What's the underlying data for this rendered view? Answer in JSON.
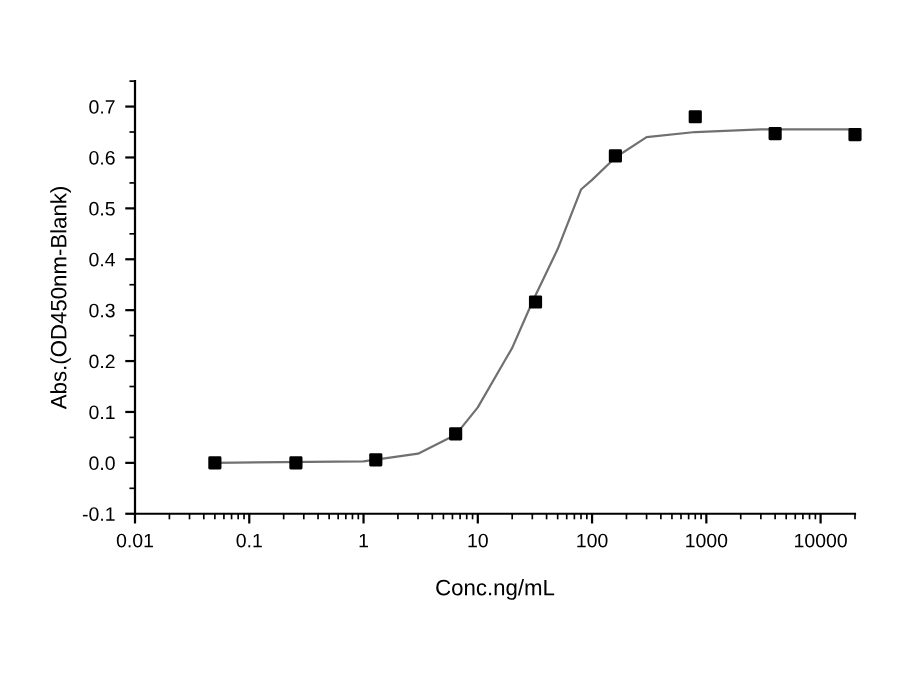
{
  "chart_data": {
    "type": "scatter",
    "xlabel": "Conc.ng/mL",
    "ylabel": "Abs.(OD450nm-Blank)",
    "log": "x",
    "xlim": [
      0.01,
      20000
    ],
    "xticks": [
      0.01,
      0.1,
      1,
      10,
      100,
      1000,
      10000
    ],
    "ylim": [
      -0.1,
      0.75
    ],
    "yticks": [
      -0.1,
      {
        "value": 0,
        "label": "0.0"
      },
      0.1,
      0.2,
      0.3,
      0.4,
      0.5,
      0.6,
      0.7
    ],
    "grid": false,
    "legend": false,
    "marker": "square",
    "series": [
      {
        "color": "#000000",
        "x": [
          0.05,
          0.256,
          1.28,
          6.4,
          32,
          160,
          800,
          4000,
          20000
        ],
        "values": [
          0,
          0,
          0.006,
          0.057,
          0.316,
          0.603,
          0.68,
          0.647,
          0.645
        ]
      },
      {
        "type": "line",
        "color": "#707070",
        "marker": "none",
        "x": [
          0.05,
          1,
          3,
          6.4,
          10,
          20,
          30,
          50,
          80,
          100,
          160,
          300,
          800,
          3000,
          20000
        ],
        "values": [
          0,
          0.003,
          0.018,
          0.055,
          0.109,
          0.226,
          0.316,
          0.42,
          0.537,
          0.556,
          0.6,
          0.64,
          0.65,
          0.655,
          0.655
        ]
      }
    ]
  }
}
